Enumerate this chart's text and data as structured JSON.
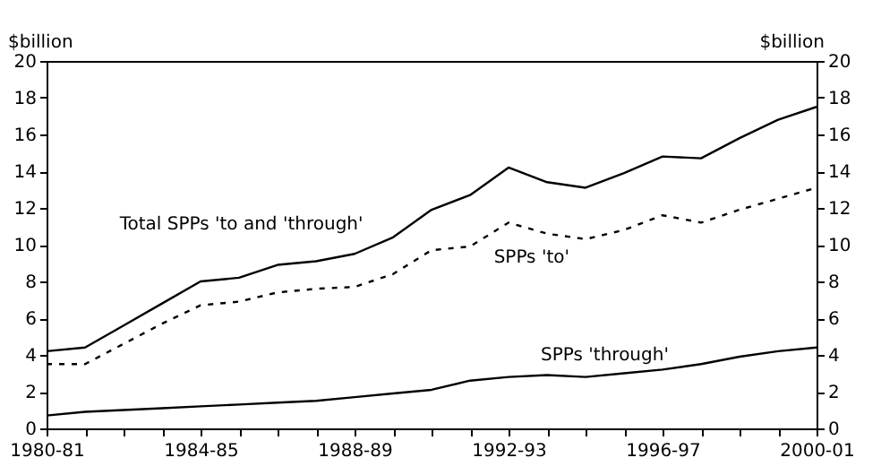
{
  "chart_data": {
    "type": "line",
    "categories": [
      "1980-81",
      null,
      null,
      null,
      "1984-85",
      null,
      null,
      null,
      "1988-89",
      null,
      null,
      null,
      "1992-93",
      null,
      null,
      null,
      "1996-97",
      null,
      null,
      null,
      "2000-01"
    ],
    "series": [
      {
        "name": "Total SPPs 'to and 'through'",
        "color": "#000000",
        "line_style": "solid",
        "values": [
          4.2,
          4.4,
          5.6,
          6.8,
          8.0,
          8.2,
          8.9,
          9.1,
          9.5,
          10.4,
          11.9,
          12.7,
          14.2,
          13.4,
          13.1,
          13.9,
          14.8,
          14.7,
          15.8,
          16.8,
          17.5
        ]
      },
      {
        "name": "SPPs 'to'",
        "color": "#000000",
        "line_style": "dashed",
        "values": [
          3.5,
          3.5,
          4.6,
          5.7,
          6.7,
          6.9,
          7.4,
          7.6,
          7.7,
          8.4,
          9.7,
          9.9,
          11.2,
          10.6,
          10.3,
          10.8,
          11.6,
          11.2,
          11.9,
          12.5,
          13.1
        ]
      },
      {
        "name": "SPPs 'through'",
        "color": "#000000",
        "line_style": "solid",
        "values": [
          0.7,
          0.9,
          1.0,
          1.1,
          1.2,
          1.3,
          1.4,
          1.5,
          1.7,
          1.9,
          2.1,
          2.6,
          2.8,
          2.9,
          2.8,
          3.0,
          3.2,
          3.5,
          3.9,
          4.2,
          4.4
        ]
      }
    ],
    "ylabel": "$billion",
    "y2label": "$billion",
    "ylim": [
      0,
      20
    ],
    "yticks": [
      0,
      2,
      4,
      6,
      8,
      10,
      12,
      14,
      16,
      18,
      20
    ],
    "y2lim": [
      0,
      20
    ],
    "y2ticks": [
      0,
      2,
      4,
      6,
      8,
      10,
      12,
      14,
      16,
      18,
      20
    ],
    "grid": false,
    "marker": "none"
  }
}
